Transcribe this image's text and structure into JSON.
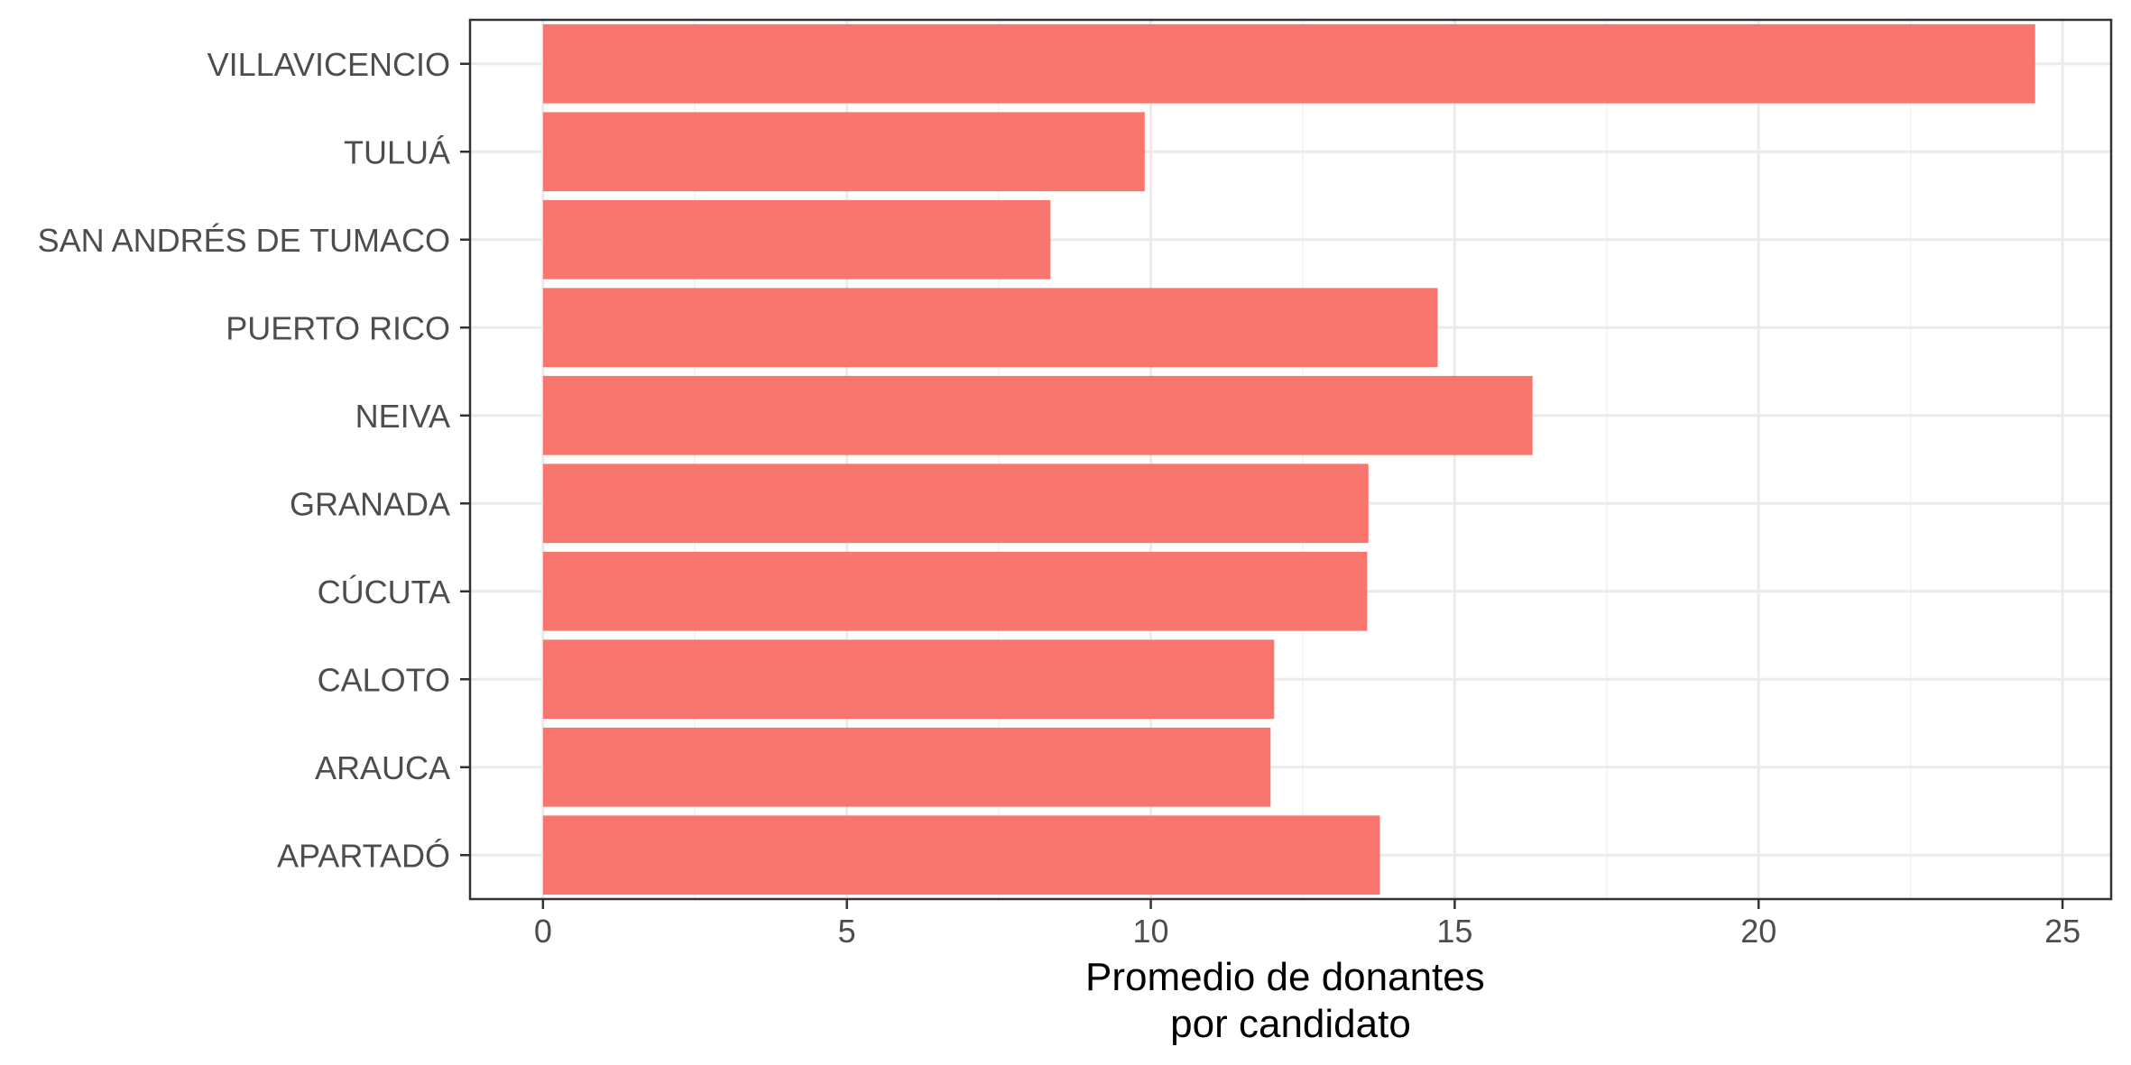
{
  "chart_data": {
    "type": "bar",
    "orientation": "horizontal",
    "categories": [
      "VILLAVICENCIO",
      "TULUÁ",
      "SAN ANDRÉS DE TUMACO",
      "PUERTO RICO",
      "NEIVA",
      "GRANADA",
      "CÚCUTA",
      "CALOTO",
      "ARAUCA",
      "APARTADÓ"
    ],
    "values": [
      24.55,
      9.9,
      8.35,
      14.72,
      16.28,
      13.58,
      13.56,
      12.03,
      11.97,
      13.77
    ],
    "xlabel_lines": [
      "Promedio de donantes",
      "por candidato"
    ],
    "ylabel": "",
    "xlim": [
      -1.2,
      25.8
    ],
    "x_ticks": [
      0,
      5,
      10,
      15,
      20,
      25
    ],
    "grid": true,
    "legend": "none",
    "bar_color": "#f8766d",
    "grid_major_color": "#ebebeb",
    "grid_minor_color": "#f2f2f2",
    "panel_border_color": "#333333"
  }
}
